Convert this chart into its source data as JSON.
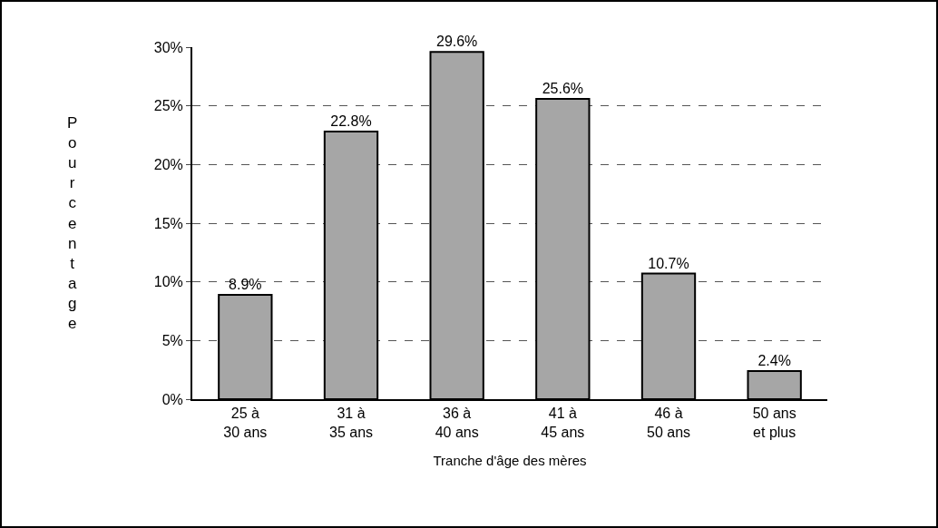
{
  "chart_data": {
    "type": "bar",
    "xlabel": "Tranche d'âge des mères",
    "ylabel": "Pourcentage",
    "categories": [
      "25 à 30 ans",
      "31 à 35 ans",
      "36 à 40 ans",
      "41 à 45 ans",
      "46 à 50 ans",
      "50 ans et plus"
    ],
    "values": [
      8.9,
      22.8,
      29.6,
      25.6,
      10.7,
      2.4
    ],
    "value_labels": [
      "8.9%",
      "22.8%",
      "29.6%",
      "25.6%",
      "10.7%",
      "2.4%"
    ],
    "color": "#a6a6a6",
    "ylim": [
      0,
      30
    ],
    "yticks": [
      {
        "value": 0,
        "label": "0%"
      },
      {
        "value": 5,
        "label": "5%"
      },
      {
        "value": 10,
        "label": "10%"
      },
      {
        "value": 15,
        "label": "15%"
      },
      {
        "value": 20,
        "label": "20%"
      },
      {
        "value": 25,
        "label": "25%"
      },
      {
        "value": 30,
        "label": "30%"
      }
    ],
    "grid": "y"
  }
}
